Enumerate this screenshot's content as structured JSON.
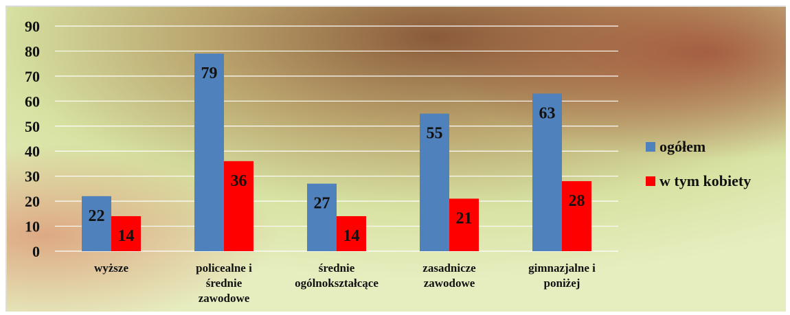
{
  "chart_data": {
    "type": "bar",
    "categories": [
      "wyższe",
      "policealne i\nśrednie\nzawodowe",
      "średnie\nogólnokształcące",
      "zasadnicze\nzawodowe",
      "gimnazjalne i\nponiżej"
    ],
    "series": [
      {
        "name": "ogółem",
        "color": "#4f81bd",
        "values": [
          22,
          79,
          27,
          55,
          63
        ]
      },
      {
        "name": "w tym kobiety",
        "color": "#ff0000",
        "values": [
          14,
          36,
          14,
          21,
          28
        ]
      }
    ],
    "ylim": [
      0,
      90
    ],
    "yticks": [
      0,
      10,
      20,
      30,
      40,
      50,
      60,
      70,
      80,
      90
    ],
    "grid": true,
    "legend": "right"
  }
}
